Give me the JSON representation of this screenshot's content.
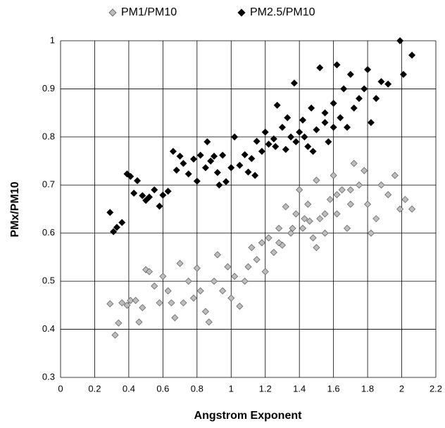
{
  "chart_data": {
    "type": "scatter",
    "x_label": "Angstrom Exponent",
    "y_label": "PMx/PM10",
    "xlim": [
      0,
      2.2
    ],
    "xticks": [
      0,
      0.2,
      0.4,
      0.6,
      0.8,
      1,
      1.2,
      1.4,
      1.6,
      1.8,
      2,
      2.2
    ],
    "ylim": [
      0.3,
      1
    ],
    "yticks": [
      0.3,
      0.4,
      0.5,
      0.6,
      0.7,
      0.8,
      0.9,
      1
    ],
    "grid": true,
    "legend": "top",
    "series": [
      {
        "name": "PM1/PM10",
        "color": "#bdbdbd",
        "x": [
          0.29,
          0.32,
          0.34,
          0.36,
          0.39,
          0.41,
          0.44,
          0.46,
          0.48,
          0.5,
          0.52,
          0.55,
          0.58,
          0.6,
          0.63,
          0.65,
          0.67,
          0.7,
          0.72,
          0.75,
          0.78,
          0.8,
          0.82,
          0.85,
          0.87,
          0.9,
          0.92,
          0.95,
          0.98,
          1.0,
          1.02,
          1.05,
          1.08,
          1.1,
          1.12,
          1.15,
          1.18,
          1.2,
          1.22,
          1.25,
          1.28,
          1.3,
          1.32,
          1.35,
          1.38,
          1.4,
          1.42,
          1.45,
          1.48,
          1.5,
          1.52,
          1.55,
          1.58,
          1.6,
          1.62,
          1.65,
          1.68,
          1.7,
          1.72,
          1.75,
          1.78,
          1.8,
          1.82,
          1.85,
          1.88,
          1.92,
          1.96,
          1.99,
          2.02,
          2.06,
          1.43,
          1.36,
          1.55,
          1.46,
          1.62,
          1.28,
          1.5,
          1.7
        ],
        "values": [
          0.453,
          0.388,
          0.413,
          0.455,
          0.45,
          0.46,
          0.46,
          0.415,
          0.445,
          0.524,
          0.52,
          0.49,
          0.455,
          0.51,
          0.48,
          0.455,
          0.424,
          0.537,
          0.455,
          0.5,
          0.465,
          0.527,
          0.48,
          0.437,
          0.415,
          0.5,
          0.555,
          0.48,
          0.53,
          0.465,
          0.51,
          0.448,
          0.5,
          0.53,
          0.57,
          0.545,
          0.58,
          0.52,
          0.59,
          0.56,
          0.61,
          0.575,
          0.655,
          0.6,
          0.64,
          0.69,
          0.61,
          0.66,
          0.59,
          0.71,
          0.63,
          0.6,
          0.67,
          0.72,
          0.64,
          0.69,
          0.61,
          0.66,
          0.745,
          0.7,
          0.73,
          0.66,
          0.6,
          0.63,
          0.7,
          0.68,
          0.72,
          0.65,
          0.67,
          0.65,
          0.63,
          0.61,
          0.64,
          0.625,
          0.68,
          0.58,
          0.57,
          0.69
        ]
      },
      {
        "name": "PM2.5/PM10",
        "color": "#000000",
        "x": [
          0.29,
          0.31,
          0.33,
          0.36,
          0.39,
          0.41,
          0.43,
          0.45,
          0.48,
          0.5,
          0.52,
          0.55,
          0.58,
          0.6,
          0.63,
          0.66,
          0.68,
          0.7,
          0.72,
          0.75,
          0.78,
          0.8,
          0.82,
          0.85,
          0.88,
          0.9,
          0.92,
          0.95,
          0.97,
          1.0,
          1.02,
          1.05,
          1.08,
          1.1,
          1.12,
          1.15,
          1.18,
          1.2,
          1.22,
          1.25,
          1.27,
          1.3,
          1.32,
          1.35,
          1.37,
          1.4,
          1.42,
          1.45,
          1.47,
          1.5,
          1.52,
          1.55,
          1.57,
          1.6,
          1.62,
          1.64,
          1.66,
          1.68,
          1.7,
          1.72,
          1.75,
          1.78,
          1.8,
          1.82,
          1.85,
          1.88,
          1.92,
          1.99,
          2.01,
          2.06,
          1.43,
          1.38,
          1.55,
          1.6,
          1.26,
          1.48,
          1.33,
          0.93,
          1.14,
          0.86
        ],
        "values": [
          0.643,
          0.603,
          0.612,
          0.622,
          0.723,
          0.718,
          0.683,
          0.709,
          0.678,
          0.668,
          0.675,
          0.69,
          0.656,
          0.679,
          0.687,
          0.77,
          0.731,
          0.76,
          0.745,
          0.723,
          0.754,
          0.708,
          0.762,
          0.736,
          0.75,
          0.76,
          0.726,
          0.762,
          0.707,
          0.736,
          0.8,
          0.741,
          0.763,
          0.727,
          0.755,
          0.791,
          0.77,
          0.81,
          0.785,
          0.796,
          0.866,
          0.82,
          0.774,
          0.8,
          0.912,
          0.81,
          0.835,
          0.78,
          0.86,
          0.815,
          0.944,
          0.83,
          0.79,
          0.87,
          0.95,
          0.84,
          0.9,
          0.82,
          0.93,
          0.86,
          0.88,
          0.9,
          0.94,
          0.83,
          0.88,
          0.915,
          0.91,
          1.0,
          0.93,
          0.97,
          0.8,
          0.79,
          0.85,
          0.82,
          0.78,
          0.77,
          0.84,
          0.7,
          0.72,
          0.79
        ]
      }
    ]
  }
}
